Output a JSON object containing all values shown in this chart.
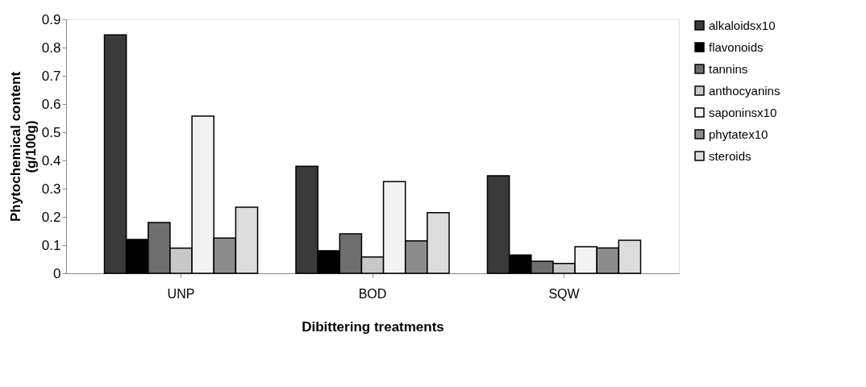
{
  "chart_data": {
    "type": "bar",
    "xlabel": "Dibittering treatments",
    "ylabel": "Phytochemical content (g/100g)",
    "categories": [
      "UNP",
      "BOD",
      "SQW"
    ],
    "series": [
      {
        "name": "alkaloidsx10",
        "color": "#3a3a3a",
        "values": [
          0.845,
          0.379,
          0.346
        ]
      },
      {
        "name": "flavonoids",
        "color": "#000000",
        "values": [
          0.12,
          0.08,
          0.065
        ]
      },
      {
        "name": "tannins",
        "color": "#6e6e6e",
        "values": [
          0.18,
          0.14,
          0.043
        ]
      },
      {
        "name": "anthocyanins",
        "color": "#c8c8c8",
        "values": [
          0.089,
          0.058,
          0.035
        ]
      },
      {
        "name": "saponinsx10",
        "color": "#f2f2f2",
        "values": [
          0.557,
          0.325,
          0.094
        ]
      },
      {
        "name": "phytatex10",
        "color": "#8c8c8c",
        "values": [
          0.125,
          0.115,
          0.09
        ]
      },
      {
        "name": "steroids",
        "color": "#dcdcdc",
        "values": [
          0.234,
          0.215,
          0.117
        ]
      }
    ],
    "ylim": [
      0,
      0.9
    ],
    "yticks": [
      0,
      0.1,
      0.2,
      0.3,
      0.4,
      0.5,
      0.6,
      0.7,
      0.8,
      0.9
    ],
    "grid": false,
    "legend": "right"
  }
}
